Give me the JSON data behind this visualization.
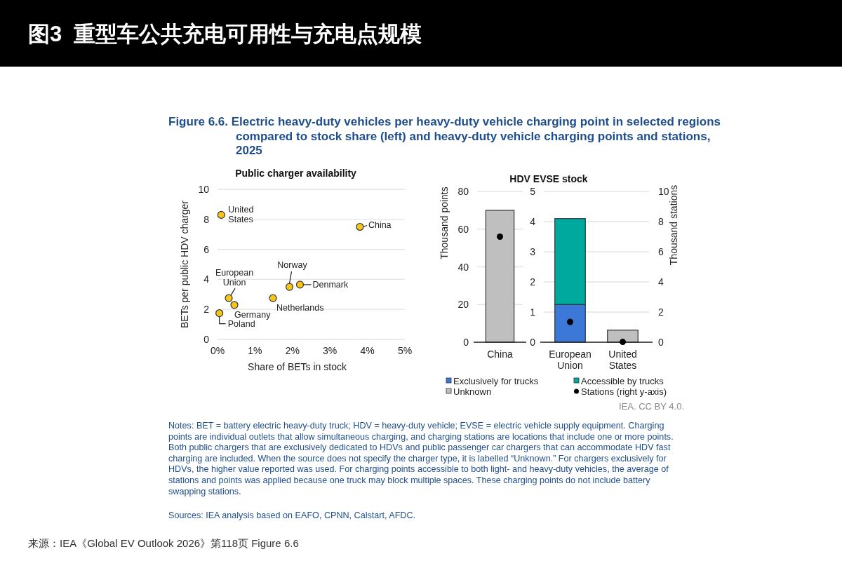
{
  "chart_data": [
    {
      "type": "other",
      "title": "图3  重型车公共充电可用性与充电点规模",
      "subtitle": "Figure 6.6. Electric heavy-duty vehicles per heavy-duty vehicle charging point in selected regions compared to stock share (left) and heavy-duty vehicle charging points and stations, 2025",
      "annotations": [
        "IEA. CC BY 4.0.",
        "Notes: BET = battery electric heavy-duty truck; HDV = heavy-duty vehicle; EVSE = electric vehicle supply equipment. Charging points are individual outlets that allow simultaneous charging, and charging stations are locations that include one or more points. Both public chargers that are exclusively dedicated to HDVs and public passenger car chargers that can accommodate HDV fast charging are included. When the source does not specify the charger type, it is labelled “Unknown.” For chargers exclusively for HDVs, the higher value reported was used. For charging points accessible to both light- and heavy-duty vehicles, the average of stations and points was applied because one truck may block multiple spaces. These charging points do not include battery swapping stations.",
        "Sources: IEA analysis based on EAFO, CPNN, Calstart, AFDC.",
        "来源：IEA《Global EV Outlook 2026》第118页 Figure 6.6"
      ]
    },
    {
      "type": "scatter",
      "title": "Public charger availability",
      "xlabel": "Share of BETs in stock",
      "ylabel": "BETs per public HDV charger",
      "x": [
        0.1,
        3.8,
        1.92,
        2.2,
        0.3,
        0.45,
        1.48,
        0.05
      ],
      "values": [
        8.3,
        7.5,
        3.5,
        3.65,
        2.75,
        2.3,
        2.75,
        1.75
      ],
      "color": "#f5c518",
      "marker": "circle",
      "grid": "y",
      "xlim": [
        0,
        5
      ],
      "xticks": [
        {
          "value": 0,
          "label": "0%"
        },
        {
          "value": 1,
          "label": "1%"
        },
        {
          "value": 2,
          "label": "2%"
        },
        {
          "value": 3,
          "label": "3%"
        },
        {
          "value": 4,
          "label": "4%"
        },
        {
          "value": 5,
          "label": "5%"
        }
      ],
      "ylim": [
        0,
        10
      ],
      "yticks": [
        0,
        2,
        4,
        6,
        8,
        10
      ],
      "annotations": [
        {
          "text": "United States",
          "x": 0.1,
          "y": 8.3
        },
        {
          "text": "China",
          "x": 3.8,
          "y": 7.5
        },
        {
          "text": "Norway",
          "x": 1.92,
          "y": 3.5
        },
        {
          "text": "Denmark",
          "x": 2.2,
          "y": 3.65
        },
        {
          "text": "European Union",
          "x": 0.3,
          "y": 2.75
        },
        {
          "text": "Germany",
          "x": 0.45,
          "y": 2.3
        },
        {
          "text": "Netherlands",
          "x": 1.48,
          "y": 2.75
        },
        {
          "text": "Poland",
          "x": 0.05,
          "y": 1.75
        }
      ]
    },
    {
      "type": "bar",
      "title": "HDV EVSE stock",
      "ylabel": "Thousand points",
      "stacked": true,
      "grid": "y",
      "categories": [
        "China"
      ],
      "series": [
        {
          "color": "#bfbfbf",
          "values": [
            70
          ]
        },
        {
          "type": "scatter",
          "axis": "y2",
          "color": "#000000",
          "values": [
            7.0
          ]
        }
      ],
      "ylim": [
        0,
        80
      ],
      "yticks": [
        0,
        20,
        40,
        60,
        80
      ],
      "y2lim": [
        0,
        10
      ]
    },
    {
      "type": "bar",
      "y2label": "Thousand stations",
      "stacked": true,
      "grid": "y",
      "legend": "bottom",
      "categories": [
        "European Union",
        "United States"
      ],
      "series": [
        {
          "name": "Exclusively for trucks",
          "color": "#3c78d8",
          "values": [
            1.25,
            null
          ]
        },
        {
          "name": "Accessible by trucks",
          "color": "#00a99d",
          "values": [
            2.85,
            null
          ]
        },
        {
          "name": "Unknown",
          "color": "#bfbfbf",
          "values": [
            null,
            0.4
          ]
        },
        {
          "name": "Stations (right y-axis)",
          "type": "scatter",
          "axis": "y2",
          "color": "#000000",
          "values": [
            1.35,
            0.02
          ]
        }
      ],
      "ylim": [
        0,
        5
      ],
      "yticks": [
        0,
        1,
        2,
        3,
        4,
        5
      ],
      "y2lim": [
        0,
        10
      ],
      "y2ticks": [
        0,
        2,
        4,
        6,
        8,
        10
      ]
    }
  ]
}
